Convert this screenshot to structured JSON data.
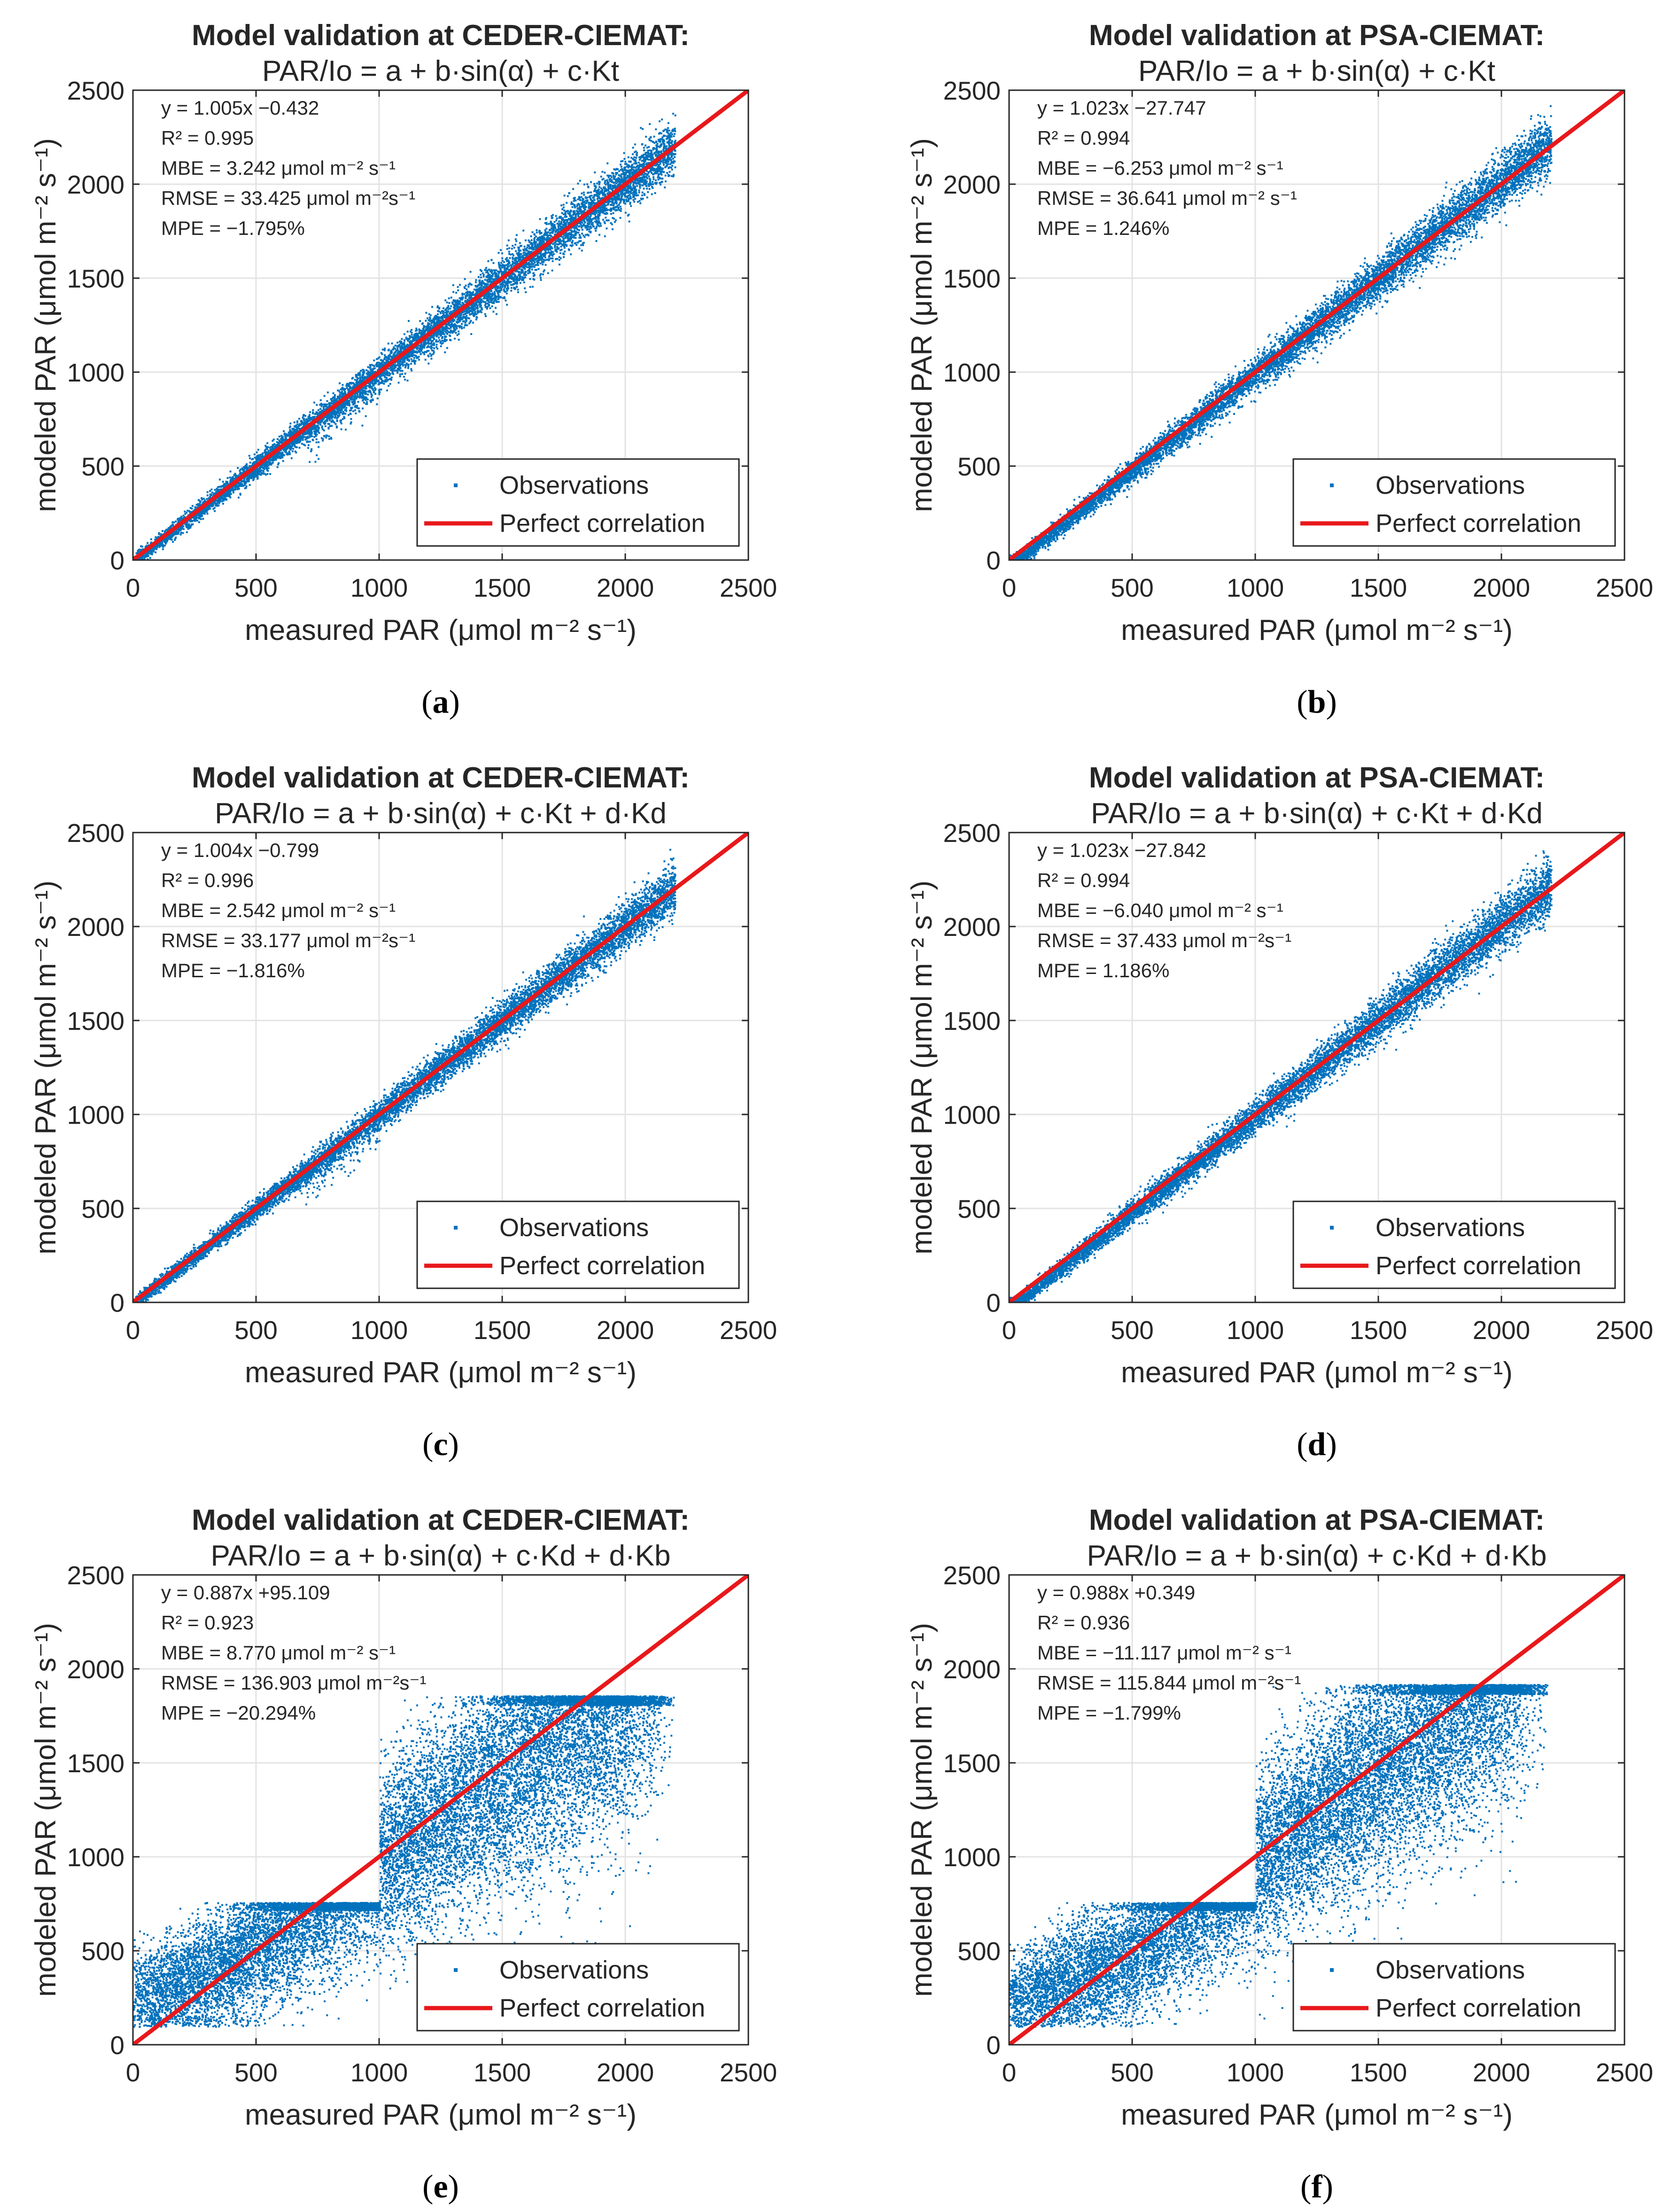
{
  "colors": {
    "observations": "#0072BD",
    "perfect": "#E8181B",
    "grid": "#E3E3E3",
    "axis": "#262626"
  },
  "chart_data": [
    {
      "id": "a",
      "type": "scatter",
      "caption": "a",
      "title": "Model validation at CEDER-CIEMAT:",
      "subtitle": "PAR/Io = a + b·sin(α) + c·Kt",
      "xlabel": "measured PAR (μmol m⁻² s⁻¹)",
      "ylabel": "modeled PAR (μmol m⁻² s⁻¹)",
      "xlim": [
        0,
        2500
      ],
      "ylim": [
        0,
        2500
      ],
      "xticks": [
        0,
        500,
        1000,
        1500,
        2000,
        2500
      ],
      "yticks": [
        0,
        500,
        1000,
        1500,
        2000,
        2500
      ],
      "grid": true,
      "legend_position": "bottom-right",
      "legend": [
        "Observations",
        "Perfect correlation"
      ],
      "stats": [
        "y = 1.005x −0.432",
        "R² = 0.995",
        "MBE = 3.242 μmol m⁻² s⁻¹",
        "RMSE = 33.425 μmol m⁻²s⁻¹",
        "MPE = −1.795%"
      ],
      "fit": {
        "slope": 1.005,
        "intercept": -0.432
      },
      "point_cloud": {
        "x_min": 0,
        "x_max": 2200,
        "spread": 55,
        "lower_tail_x": [
          700,
          1000
        ],
        "lower_tail_extra": 150,
        "points": 9000
      },
      "perfect_line": [
        [
          0,
          0
        ],
        [
          2500,
          2500
        ]
      ]
    },
    {
      "id": "b",
      "type": "scatter",
      "caption": "b",
      "title": "Model validation at PSA-CIEMAT:",
      "subtitle": "PAR/Io = a + b·sin(α) + c·Kt",
      "xlabel": "measured PAR (μmol m⁻² s⁻¹)",
      "ylabel": "modeled PAR (μmol m⁻² s⁻¹)",
      "xlim": [
        0,
        2500
      ],
      "ylim": [
        0,
        2500
      ],
      "xticks": [
        0,
        500,
        1000,
        1500,
        2000,
        2500
      ],
      "yticks": [
        0,
        500,
        1000,
        1500,
        2000,
        2500
      ],
      "grid": true,
      "legend_position": "bottom-right",
      "legend": [
        "Observations",
        "Perfect correlation"
      ],
      "stats": [
        "y = 1.023x −27.747",
        "R² = 0.994",
        "MBE = −6.253 μmol m⁻² s⁻¹",
        "RMSE = 36.641 μmol m⁻² s⁻¹",
        "MPE = 1.246%"
      ],
      "fit": {
        "slope": 1.023,
        "intercept": -27.747
      },
      "point_cloud": {
        "x_min": 0,
        "x_max": 2200,
        "spread": 60,
        "lower_tail_x": [
          0,
          0
        ],
        "lower_tail_extra": 0,
        "points": 9000
      },
      "perfect_line": [
        [
          0,
          0
        ],
        [
          2500,
          2500
        ]
      ]
    },
    {
      "id": "c",
      "type": "scatter",
      "caption": "c",
      "title": "Model validation at CEDER-CIEMAT:",
      "subtitle": "PAR/Io = a + b·sin(α) + c·Kt + d·Kd",
      "xlabel": "measured PAR (μmol m⁻² s⁻¹)",
      "ylabel": "modeled PAR (μmol m⁻² s⁻¹)",
      "xlim": [
        0,
        2500
      ],
      "ylim": [
        0,
        2500
      ],
      "xticks": [
        0,
        500,
        1000,
        1500,
        2000,
        2500
      ],
      "yticks": [
        0,
        500,
        1000,
        1500,
        2000,
        2500
      ],
      "grid": true,
      "legend_position": "bottom-right",
      "legend": [
        "Observations",
        "Perfect correlation"
      ],
      "stats": [
        "y = 1.004x −0.799",
        "R² = 0.996",
        "MBE = 2.542 μmol m⁻² s⁻¹",
        "RMSE = 33.177 μmol m⁻²s⁻¹",
        "MPE = −1.816%"
      ],
      "fit": {
        "slope": 1.004,
        "intercept": -0.799
      },
      "point_cloud": {
        "x_min": 0,
        "x_max": 2200,
        "spread": 52,
        "lower_tail_x": [
          700,
          1000
        ],
        "lower_tail_extra": 150,
        "points": 9000
      },
      "perfect_line": [
        [
          0,
          0
        ],
        [
          2500,
          2500
        ]
      ]
    },
    {
      "id": "d",
      "type": "scatter",
      "caption": "d",
      "title": "Model validation at PSA-CIEMAT:",
      "subtitle": "PAR/Io = a + b·sin(α) + c·Kt + d·Kd",
      "xlabel": "measured PAR (μmol m⁻² s⁻¹)",
      "ylabel": "modeled PAR (μmol m⁻² s⁻¹)",
      "xlim": [
        0,
        2500
      ],
      "ylim": [
        0,
        2500
      ],
      "xticks": [
        0,
        500,
        1000,
        1500,
        2000,
        2500
      ],
      "yticks": [
        0,
        500,
        1000,
        1500,
        2000,
        2500
      ],
      "grid": true,
      "legend_position": "bottom-right",
      "legend": [
        "Observations",
        "Perfect correlation"
      ],
      "stats": [
        "y = 1.023x −27.842",
        "R² = 0.994",
        "MBE = −6.040 μmol m⁻² s⁻¹",
        "RMSE = 37.433 μmol m⁻²s⁻¹",
        "MPE = 1.186%"
      ],
      "fit": {
        "slope": 1.023,
        "intercept": -27.842
      },
      "point_cloud": {
        "x_min": 0,
        "x_max": 2200,
        "spread": 60,
        "lower_tail_x": [
          0,
          0
        ],
        "lower_tail_extra": 0,
        "points": 9000
      },
      "perfect_line": [
        [
          0,
          0
        ],
        [
          2500,
          2500
        ]
      ]
    },
    {
      "id": "e",
      "type": "scatter",
      "caption": "e",
      "title": "Model validation at CEDER-CIEMAT:",
      "subtitle": "PAR/Io = a + b·sin(α) + c·Kd + d·Kb",
      "xlabel": "measured PAR (μmol m⁻² s⁻¹)",
      "ylabel": "modeled PAR (μmol m⁻² s⁻¹)",
      "xlim": [
        0,
        2500
      ],
      "ylim": [
        0,
        2500
      ],
      "xticks": [
        0,
        500,
        1000,
        1500,
        2000,
        2500
      ],
      "yticks": [
        0,
        500,
        1000,
        1500,
        2000,
        2500
      ],
      "grid": true,
      "legend_position": "bottom-right",
      "legend": [
        "Observations",
        "Perfect correlation"
      ],
      "stats": [
        "y = 0.887x +95.109",
        "R² = 0.923",
        "MBE = 8.770 μmol m⁻² s⁻¹",
        "RMSE = 136.903 μmol m⁻²s⁻¹",
        "MPE = −20.294%"
      ],
      "fit": {
        "slope": 0.887,
        "intercept": 95.109
      },
      "point_cloud": {
        "x_min": 0,
        "x_max": 2200,
        "spread": 230,
        "y_floor": 100,
        "y_cap_low": 760,
        "y_cap_high": 1860,
        "points": 16000
      },
      "perfect_line": [
        [
          0,
          0
        ],
        [
          2500,
          2500
        ]
      ]
    },
    {
      "id": "f",
      "type": "scatter",
      "caption": "f",
      "title": "Model validation at PSA-CIEMAT:",
      "subtitle": "PAR/Io = a + b·sin(α) + c·Kd + d·Kb",
      "xlabel": "measured PAR (μmol m⁻² s⁻¹)",
      "ylabel": "modeled PAR (μmol m⁻² s⁻¹)",
      "xlim": [
        0,
        2500
      ],
      "ylim": [
        0,
        2500
      ],
      "xticks": [
        0,
        500,
        1000,
        1500,
        2000,
        2500
      ],
      "yticks": [
        0,
        500,
        1000,
        1500,
        2000,
        2500
      ],
      "grid": true,
      "legend_position": "bottom-right",
      "legend": [
        "Observations",
        "Perfect correlation"
      ],
      "stats": [
        "y = 0.988x +0.349",
        "R² = 0.936",
        "MBE = −11.117 μmol m⁻² s⁻¹",
        "RMSE = 115.844 μmol m⁻²s⁻¹",
        "MPE = −1.799%"
      ],
      "fit": {
        "slope": 0.988,
        "intercept": 0.349
      },
      "point_cloud": {
        "x_min": 0,
        "x_max": 2200,
        "spread": 220,
        "y_floor": 100,
        "y_cap_low": 760,
        "y_cap_high": 1920,
        "points": 16000
      },
      "perfect_line": [
        [
          0,
          0
        ],
        [
          2500,
          2500
        ]
      ]
    }
  ]
}
